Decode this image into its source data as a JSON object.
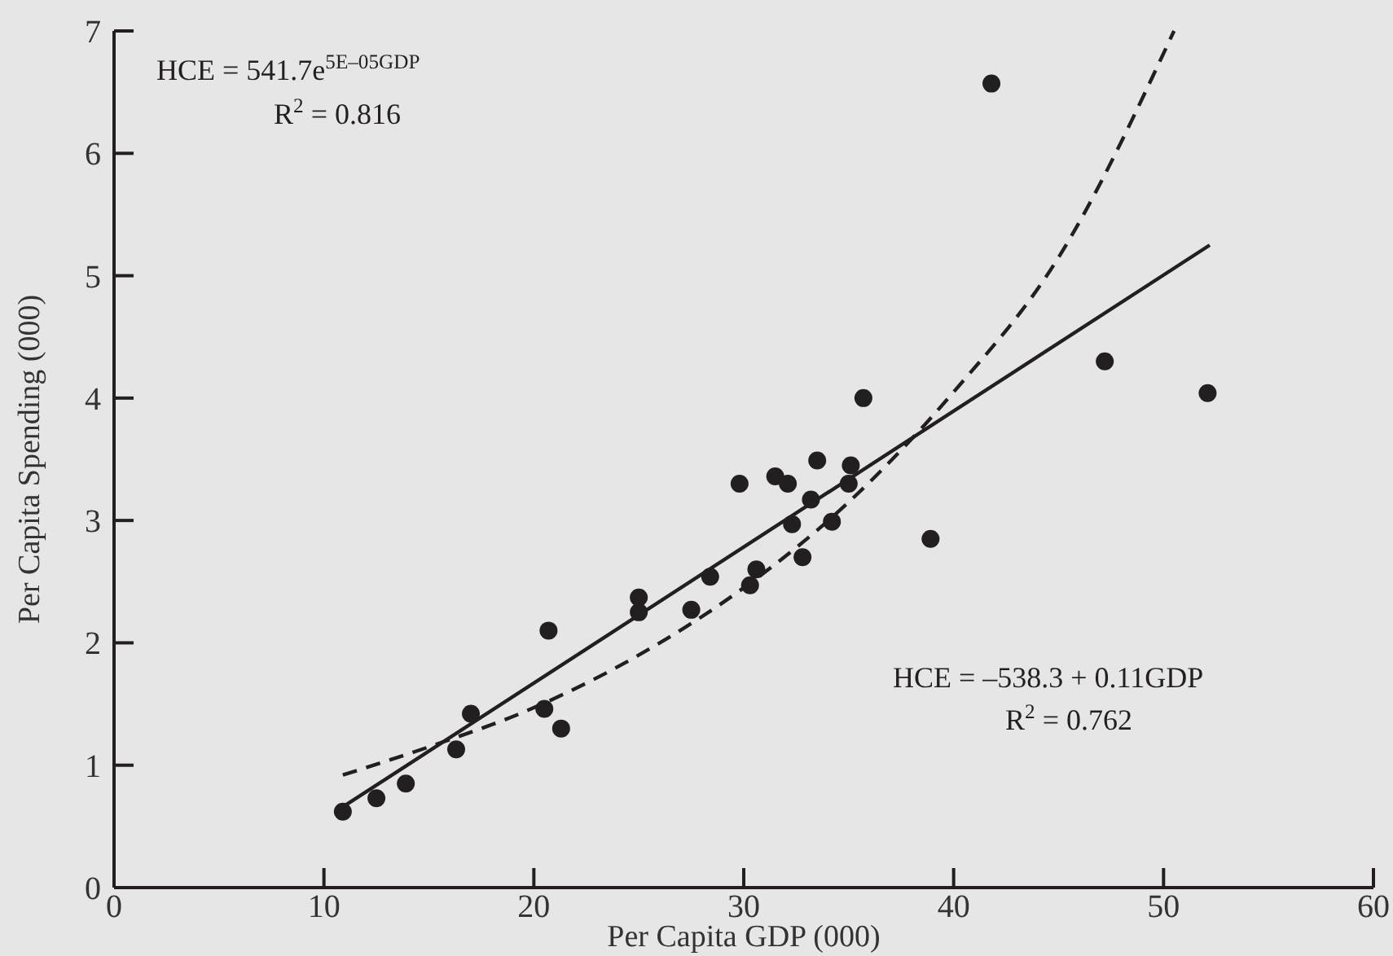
{
  "chart_data": {
    "type": "scatter",
    "xlabel": "Per Capita GDP (000)",
    "ylabel": "Per Capita Spending (000)",
    "xlim": [
      0,
      60
    ],
    "xticks": [
      0,
      10,
      20,
      30,
      40,
      50,
      60
    ],
    "ylim": [
      0,
      7
    ],
    "yticks": [
      0,
      1,
      2,
      3,
      4,
      5,
      6,
      7
    ],
    "grid": false,
    "series": [
      {
        "type": "scatter",
        "color": "#231f20",
        "marker": "circle",
        "x": [
          10.9,
          12.5,
          13.9,
          16.3,
          17,
          20.5,
          20.7,
          21.3,
          25,
          25,
          27.5,
          28.4,
          29.8,
          30.3,
          30.6,
          31.5,
          32.1,
          32.3,
          32.8,
          33.2,
          33.5,
          34.2,
          35,
          35.1,
          35.7,
          38.9,
          41.8,
          47.2,
          52.1
        ],
        "values": [
          0.62,
          0.73,
          0.85,
          1.13,
          1.42,
          1.46,
          2.1,
          1.3,
          2.25,
          2.37,
          2.27,
          2.54,
          3.3,
          2.47,
          2.6,
          3.36,
          3.3,
          2.97,
          2.7,
          3.17,
          3.49,
          2.99,
          3.3,
          3.45,
          4.0,
          2.85,
          6.57,
          4.3,
          4.04
        ]
      },
      {
        "type": "line",
        "color": "#231f20",
        "line_style": "solid",
        "x": [
          10.9,
          52.2
        ],
        "values": [
          0.66,
          5.25
        ]
      },
      {
        "type": "line",
        "color": "#231f20",
        "line_style": "dashed",
        "x": [
          10.9,
          15,
          20,
          25,
          30,
          35,
          40,
          45,
          50.5
        ],
        "values": [
          0.92,
          1.15,
          1.47,
          1.9,
          2.45,
          3.15,
          4.05,
          5.15,
          7.0
        ]
      }
    ],
    "annotations": [
      "HCE = 541.7e$^{5E–05GDP}$",
      "R$^{2}$ = 0.816",
      "HCE = –538.3 + 0.11GDP",
      "R$^{2}$ = 0.762"
    ]
  }
}
